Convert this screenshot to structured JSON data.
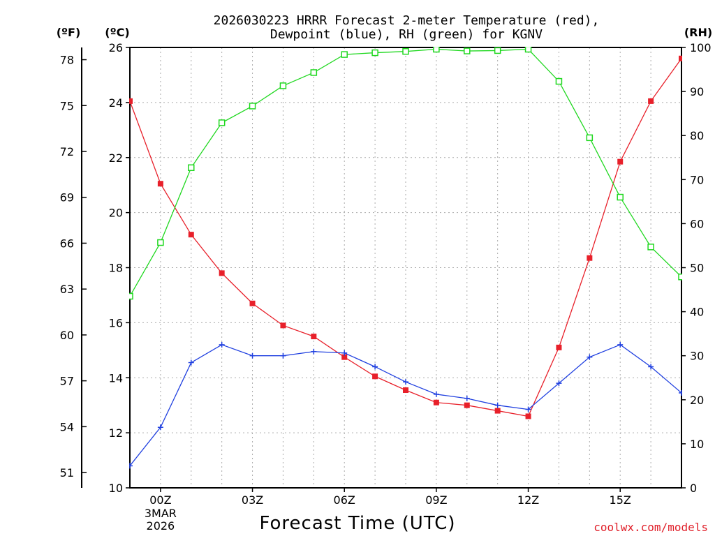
{
  "chart_data": {
    "type": "line",
    "title_line1": "2026030223 HRRR Forecast 2-meter Temperature (red),",
    "title_line2": "Dewpoint (blue), RH (green) for KGNV",
    "xlabel": "Forecast Time (UTC)",
    "credit": "coolwx.com/models",
    "units": {
      "f": "(ºF)",
      "c": "(ºC)",
      "rh": "(RH)"
    },
    "x_hours": [
      -1,
      0,
      1,
      2,
      3,
      4,
      5,
      6,
      7,
      8,
      9,
      10,
      11,
      12,
      13,
      14,
      15,
      16,
      17
    ],
    "xlim": [
      -1,
      17
    ],
    "x_ticks": [
      {
        "hour": 0,
        "label": "00Z",
        "date": "3MAR",
        "year": "2026"
      },
      {
        "hour": 3,
        "label": "03Z"
      },
      {
        "hour": 6,
        "label": "06Z"
      },
      {
        "hour": 9,
        "label": "09Z"
      },
      {
        "hour": 12,
        "label": "12Z"
      },
      {
        "hour": 15,
        "label": "15Z"
      }
    ],
    "y_c": {
      "lim": [
        10,
        26
      ],
      "ticks": [
        "10",
        "12",
        "14",
        "16",
        "18",
        "20",
        "22",
        "24",
        "26"
      ]
    },
    "y_f": {
      "ticks": [
        "51",
        "54",
        "57",
        "60",
        "63",
        "66",
        "69",
        "72",
        "75",
        "78"
      ]
    },
    "y_rh": {
      "lim": [
        0,
        100
      ],
      "ticks": [
        "0",
        "10",
        "20",
        "30",
        "40",
        "50",
        "60",
        "70",
        "80",
        "90",
        "100"
      ]
    },
    "series": [
      {
        "name": "Temperature",
        "axis": "c",
        "color": "#e8202a",
        "marker": "filled-square",
        "values": [
          24.05,
          21.05,
          19.2,
          17.8,
          16.7,
          15.9,
          15.5,
          14.75,
          14.05,
          13.55,
          13.1,
          13.0,
          12.8,
          12.6,
          15.1,
          18.35,
          21.85,
          24.05,
          25.6
        ]
      },
      {
        "name": "Dewpoint",
        "axis": "c",
        "color": "#2040e0",
        "marker": "plus",
        "values": [
          10.8,
          12.2,
          14.55,
          15.2,
          14.8,
          14.8,
          14.95,
          14.9,
          14.4,
          13.85,
          13.4,
          13.25,
          13.0,
          12.85,
          13.8,
          14.75,
          15.2,
          14.4,
          13.45
        ]
      },
      {
        "name": "RH",
        "axis": "rh",
        "color": "#20d820",
        "marker": "open-square",
        "values": [
          43.5,
          55.7,
          72.7,
          82.9,
          86.7,
          91.3,
          94.3,
          98.4,
          98.8,
          99.1,
          99.6,
          99.2,
          99.3,
          99.6,
          92.3,
          79.5,
          66.0,
          54.7,
          47.9
        ]
      }
    ],
    "grid": true
  }
}
